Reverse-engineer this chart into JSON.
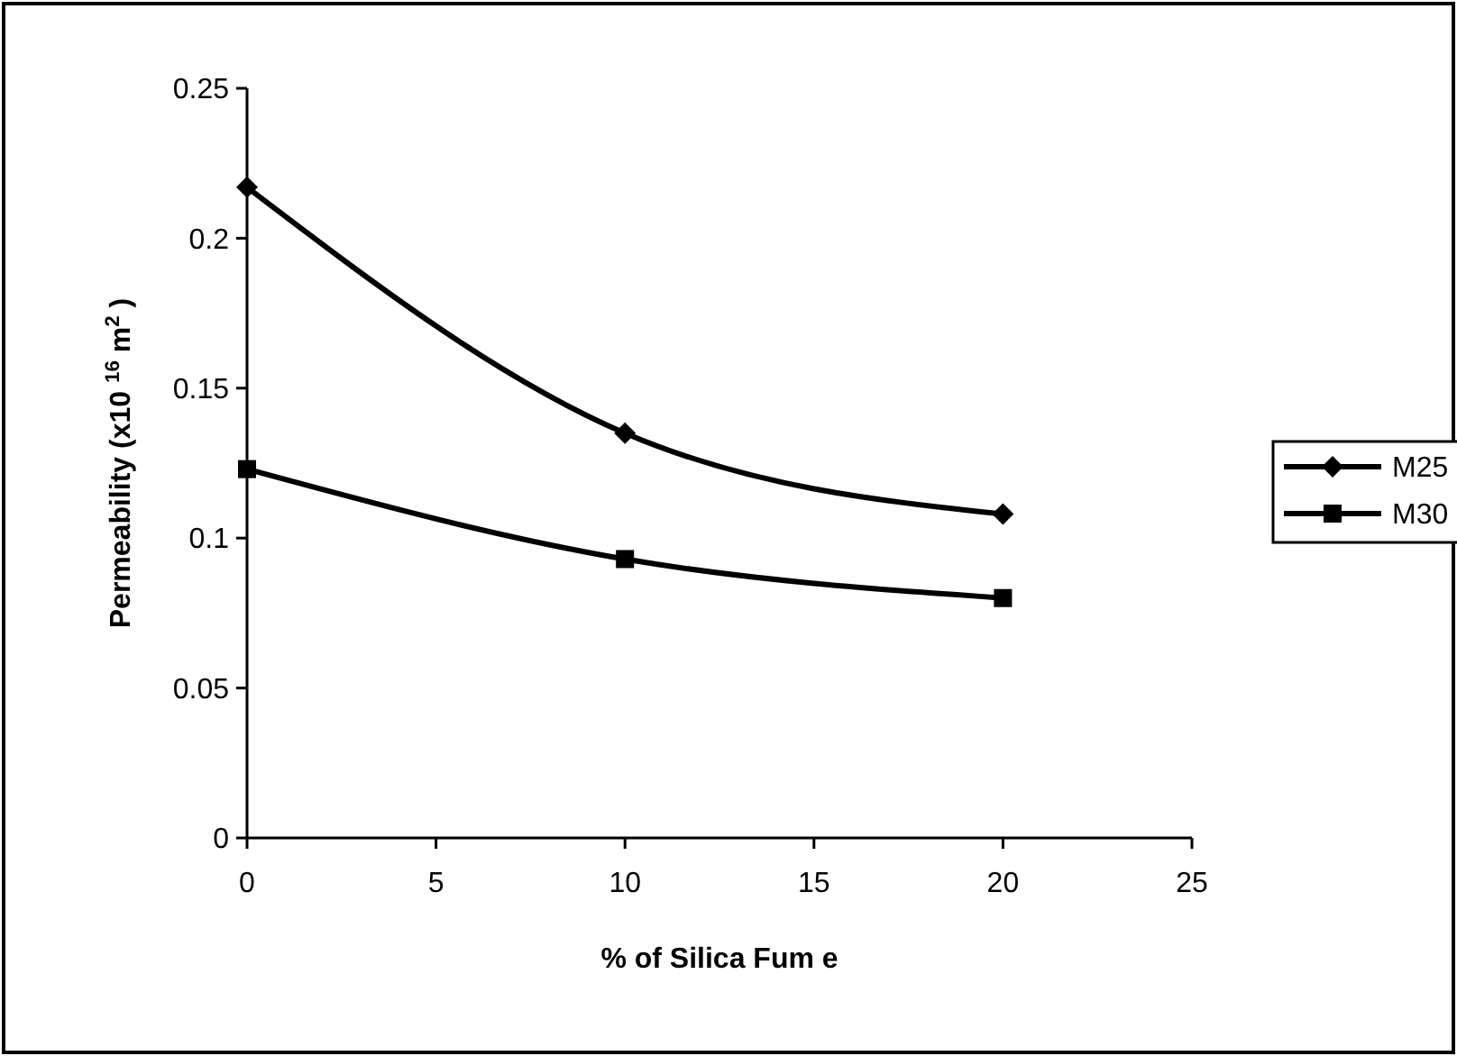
{
  "chart_data": {
    "type": "line",
    "xlabel": "% of Silica Fum e",
    "ylabel": "Permeability (x10 $^{16}$ m$^{2}$ )",
    "x": [
      0,
      10,
      20
    ],
    "xlim": [
      0,
      25
    ],
    "xticks": [
      0,
      5,
      10,
      15,
      20,
      25
    ],
    "ylim": [
      0,
      0.25
    ],
    "yticks": [
      0,
      0.05,
      0.1,
      0.15,
      0.2,
      0.25
    ],
    "legend": "right",
    "grid": false,
    "line_style": "solid",
    "series": [
      {
        "name": "M25",
        "color": "#000000",
        "marker": "diamond",
        "values": [
          0.217,
          0.135,
          0.108
        ]
      },
      {
        "name": "M30",
        "color": "#000000",
        "marker": "square",
        "values": [
          0.123,
          0.093,
          0.08
        ]
      }
    ]
  }
}
